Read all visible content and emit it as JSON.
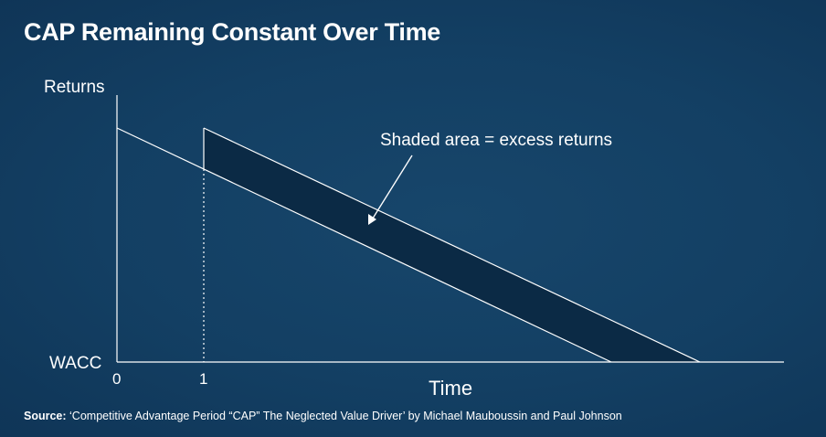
{
  "title": "CAP Remaining Constant Over Time",
  "labels": {
    "y_axis": "Returns",
    "baseline": "WACC",
    "x_axis": "Time",
    "tick_0": "0",
    "tick_1": "1",
    "annotation": "Shaded area = excess returns"
  },
  "source": {
    "prefix": "Source:",
    "text": " ‘Competitive Advantage Period “CAP” The Neglected Value Driver’ by Michael Mauboussin and Paul Johnson"
  },
  "colors": {
    "background": "#133f63",
    "shaded_band": "#0b2a45",
    "lines": "#ffffff"
  }
}
